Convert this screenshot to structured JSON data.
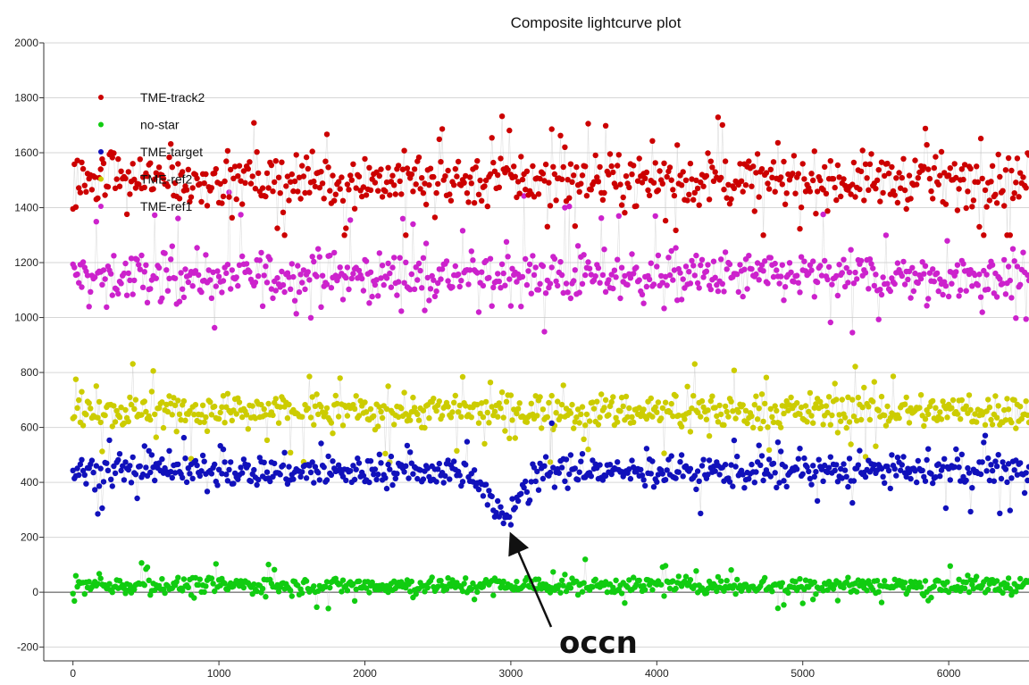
{
  "chart_data": {
    "type": "scatter",
    "title": "Composite lightcurve plot",
    "xlabel": "",
    "ylabel": "",
    "xlim": [
      -200,
      6550
    ],
    "ylim": [
      -250,
      2000
    ],
    "x_ticks": [
      0,
      1000,
      2000,
      3000,
      4000,
      5000,
      6000
    ],
    "y_ticks": [
      -200,
      0,
      200,
      400,
      600,
      800,
      1000,
      1200,
      1400,
      1600,
      1800,
      2000
    ],
    "grid": true,
    "legend_position": "top-left",
    "x_range": [
      0,
      6550
    ],
    "x_step": 10,
    "series": [
      {
        "name": "TME-track2",
        "color": "#cc0000",
        "mean": 1500,
        "spread": 120,
        "min": 1300,
        "max": 1900
      },
      {
        "name": "no-star",
        "color": "#11cc11",
        "mean": 25,
        "spread": 40,
        "min": -150,
        "max": 190
      },
      {
        "name": "TME-target",
        "color": "#1111bb",
        "mean": 440,
        "spread": 70,
        "min": 200,
        "max": 620,
        "dip": {
          "center": 2950,
          "width": 120,
          "depth": 180
        }
      },
      {
        "name": "TME-ref2",
        "color": "#cccc00",
        "mean": 660,
        "spread": 80,
        "min": 440,
        "max": 960
      },
      {
        "name": "TME-ref1",
        "color": "#cc22cc",
        "mean": 1150,
        "spread": 110,
        "min": 800,
        "max": 1690
      }
    ],
    "annotation": {
      "text": "occn",
      "x": 2950,
      "y": 215
    }
  }
}
